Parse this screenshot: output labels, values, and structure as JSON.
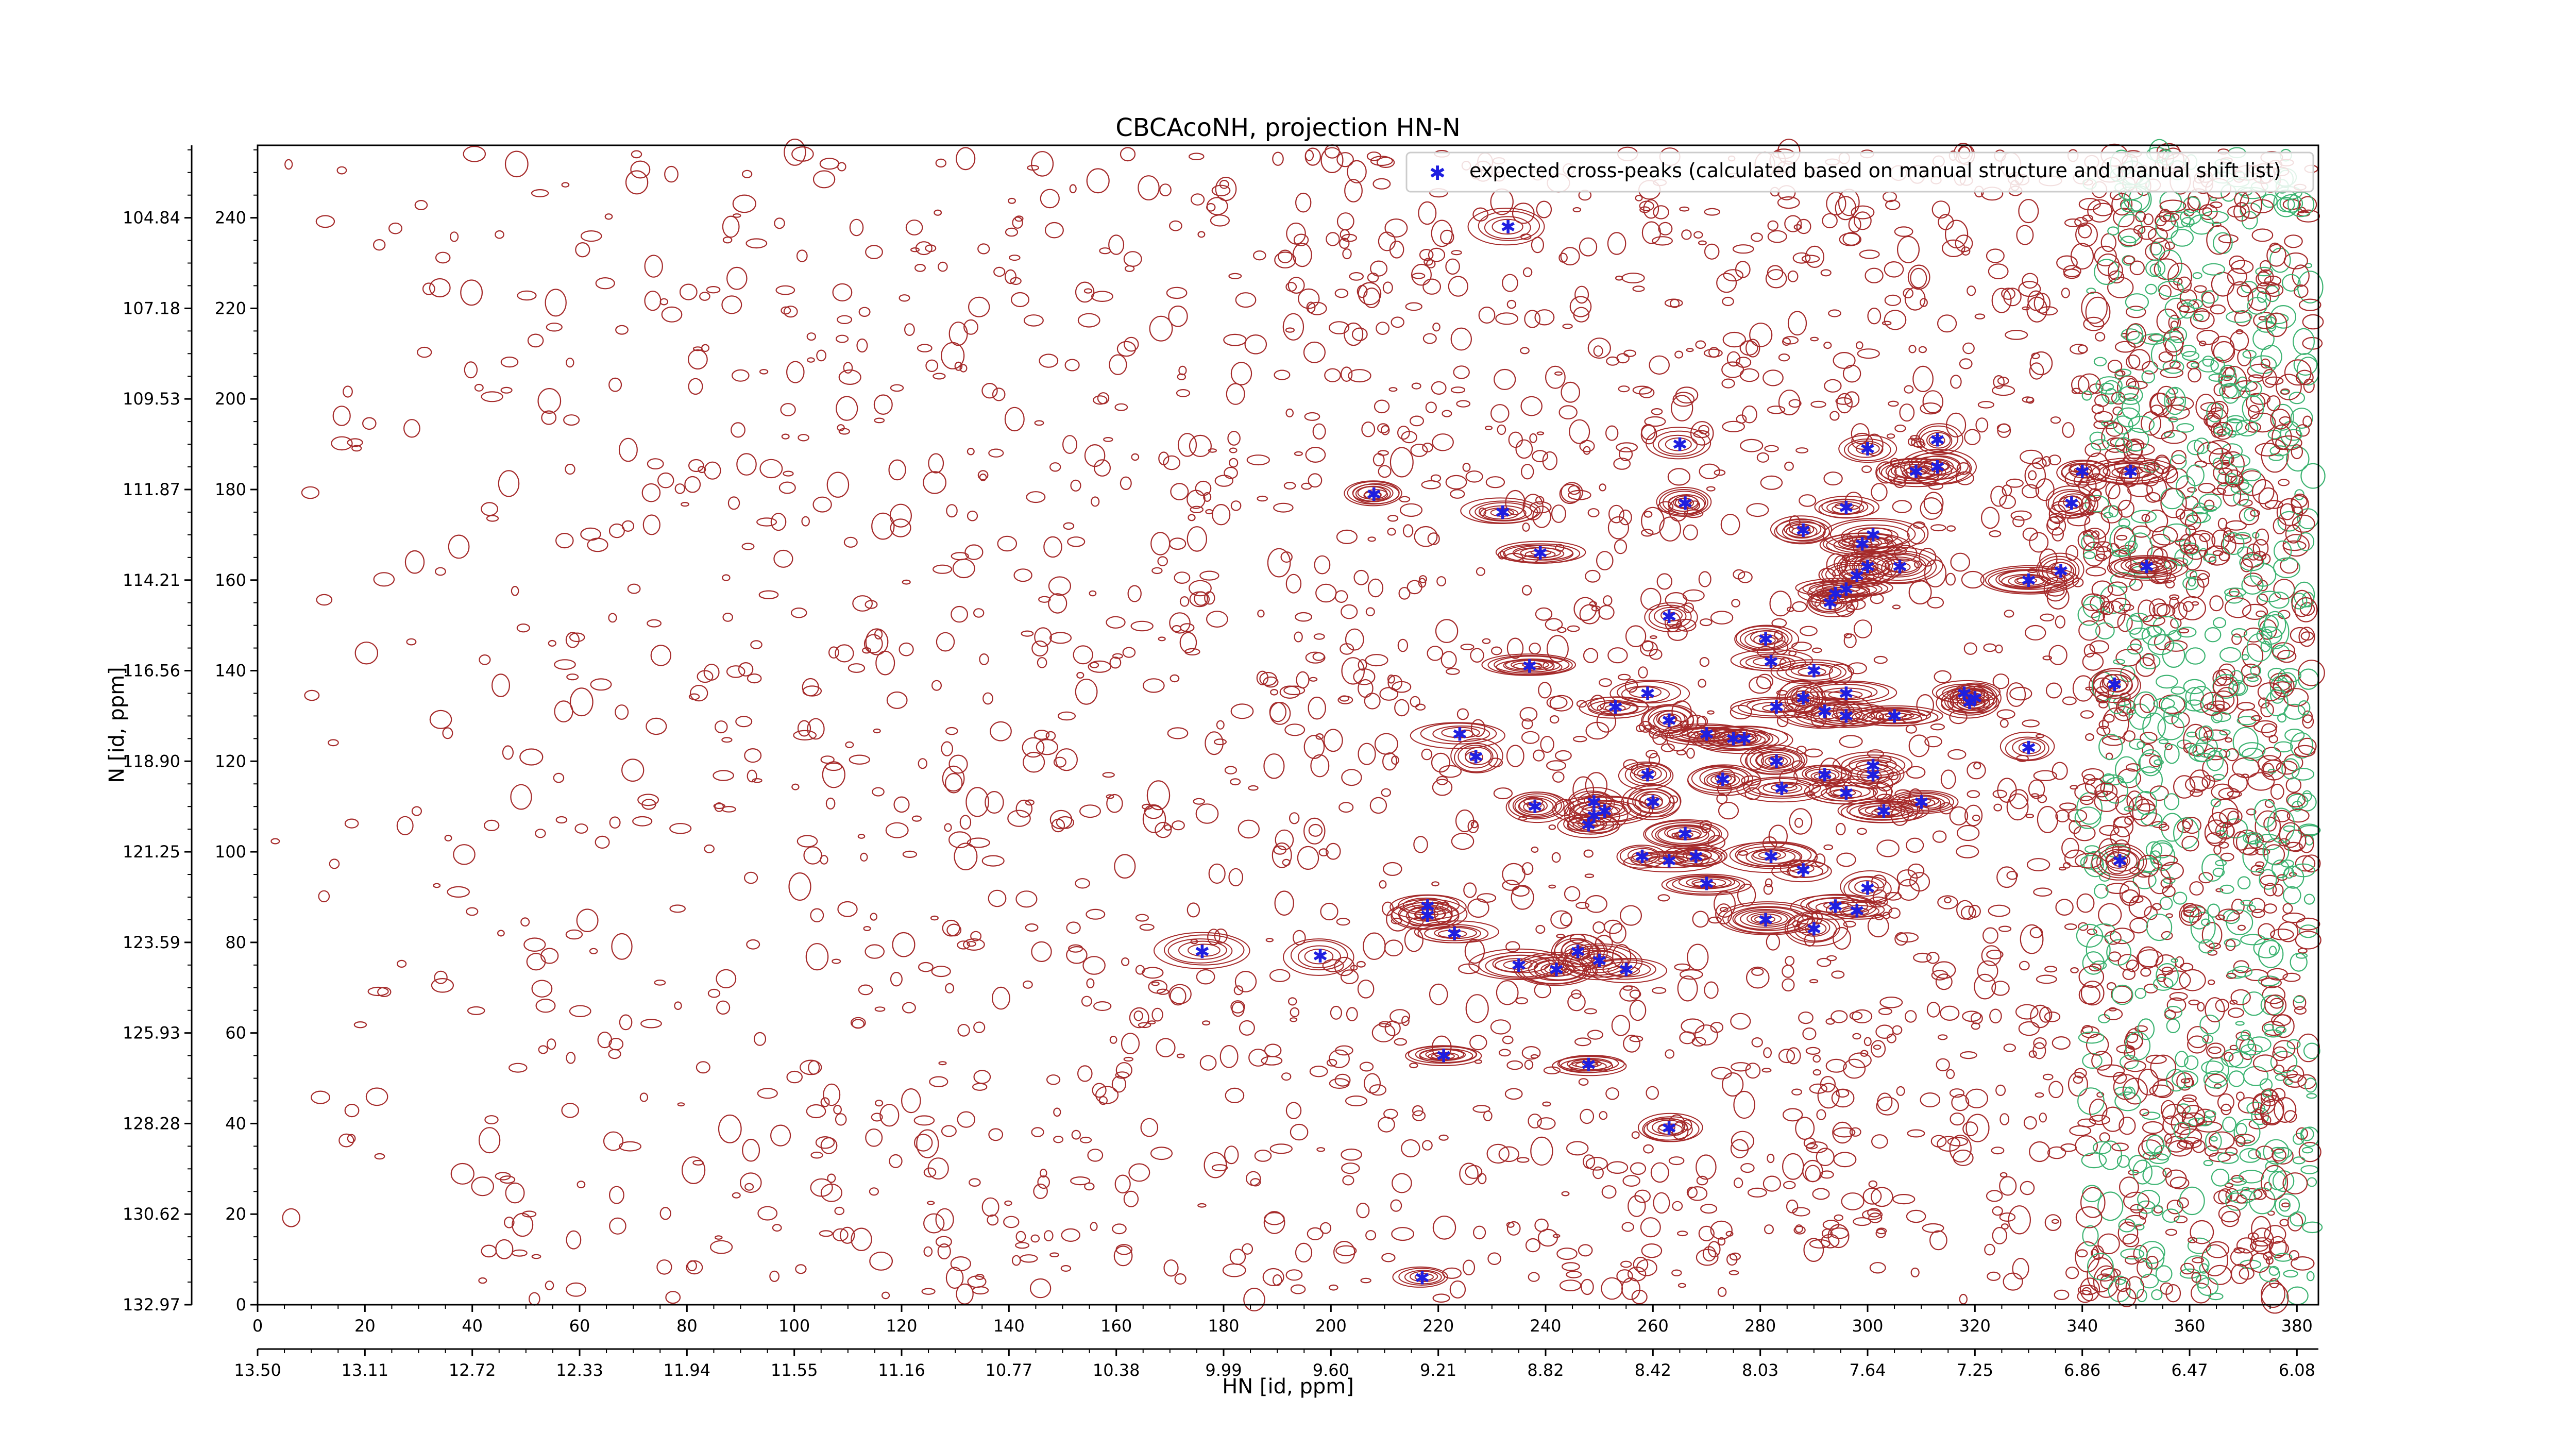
{
  "chart_data": {
    "type": "scatter",
    "title": "CBCAcoNH, projection HN-N",
    "xlabel": "HN [id, ppm]",
    "ylabel": "N [id, ppm]",
    "xlim": [
      0,
      384
    ],
    "ylim": [
      0,
      256
    ],
    "x_ticks": [
      0,
      20,
      40,
      60,
      80,
      100,
      120,
      140,
      160,
      180,
      200,
      220,
      240,
      260,
      280,
      300,
      320,
      340,
      360,
      380
    ],
    "y_ticks": [
      0,
      20,
      40,
      60,
      80,
      100,
      120,
      140,
      160,
      180,
      200,
      220,
      240
    ],
    "ppm_x_ticks": [
      "13.50",
      "13.11",
      "12.72",
      "12.33",
      "11.94",
      "11.55",
      "11.16",
      "10.77",
      "10.38",
      "9.99",
      "9.60",
      "9.21",
      "8.82",
      "8.42",
      "8.03",
      "7.64",
      "7.25",
      "6.86",
      "6.47",
      "6.08"
    ],
    "ppm_y_ticks": [
      "132.97",
      "130.62",
      "128.28",
      "125.93",
      "123.59",
      "121.25",
      "118.90",
      "116.56",
      "114.21",
      "111.87",
      "109.53",
      "107.18",
      "104.84"
    ],
    "grid": false,
    "legend": {
      "placement": "top-right",
      "entries": [
        "expected cross-peaks (calculated based on manual structure and manual shift list)"
      ]
    },
    "colors": {
      "peaks": "#1f1fe0",
      "contour_pos": "#a52a2a",
      "contour_neg": "#3cb371",
      "axis": "#000000"
    },
    "series": [
      {
        "name": "expected cross-peaks (calculated based on manual structure and manual shift list)",
        "points": [
          [
            233,
            238
          ],
          [
            239,
            166
          ],
          [
            232,
            175
          ],
          [
            208,
            179
          ],
          [
            265,
            190
          ],
          [
            266,
            177
          ],
          [
            300,
            189
          ],
          [
            309,
            184
          ],
          [
            313,
            191
          ],
          [
            313,
            185
          ],
          [
            338,
            177
          ],
          [
            340,
            184
          ],
          [
            349,
            184
          ],
          [
            352,
            163
          ],
          [
            336,
            162
          ],
          [
            330,
            160
          ],
          [
            306,
            163
          ],
          [
            300,
            163
          ],
          [
            301,
            170
          ],
          [
            299,
            168
          ],
          [
            296,
            176
          ],
          [
            288,
            171
          ],
          [
            298,
            161
          ],
          [
            296,
            158
          ],
          [
            294,
            157
          ],
          [
            293,
            155
          ],
          [
            263,
            152
          ],
          [
            281,
            147
          ],
          [
            282,
            142
          ],
          [
            290,
            140
          ],
          [
            296,
            135
          ],
          [
            305,
            130
          ],
          [
            318,
            135
          ],
          [
            319,
            133
          ],
          [
            320,
            134
          ],
          [
            330,
            123
          ],
          [
            346,
            137
          ],
          [
            237,
            141
          ],
          [
            253,
            132
          ],
          [
            259,
            135
          ],
          [
            263,
            129
          ],
          [
            275,
            125
          ],
          [
            283,
            132
          ],
          [
            288,
            134
          ],
          [
            296,
            130
          ],
          [
            292,
            131
          ],
          [
            270,
            126
          ],
          [
            277,
            125
          ],
          [
            283,
            120
          ],
          [
            224,
            126
          ],
          [
            227,
            121
          ],
          [
            292,
            117
          ],
          [
            301,
            119
          ],
          [
            296,
            113
          ],
          [
            303,
            109
          ],
          [
            310,
            111
          ],
          [
            259,
            117
          ],
          [
            273,
            116
          ],
          [
            284,
            114
          ],
          [
            301,
            117
          ],
          [
            238,
            110
          ],
          [
            249,
            111
          ],
          [
            249,
            108
          ],
          [
            251,
            109
          ],
          [
            248,
            106
          ],
          [
            260,
            111
          ],
          [
            266,
            104
          ],
          [
            268,
            99
          ],
          [
            258,
            99
          ],
          [
            263,
            98
          ],
          [
            270,
            93
          ],
          [
            282,
            99
          ],
          [
            288,
            96
          ],
          [
            300,
            92
          ],
          [
            294,
            88
          ],
          [
            298,
            87
          ],
          [
            281,
            85
          ],
          [
            290,
            83
          ],
          [
            218,
            88
          ],
          [
            218,
            86
          ],
          [
            223,
            82
          ],
          [
            176,
            78
          ],
          [
            198,
            77
          ],
          [
            235,
            75
          ],
          [
            246,
            78
          ],
          [
            250,
            76
          ],
          [
            255,
            74
          ],
          [
            242,
            74
          ],
          [
            347,
            98
          ],
          [
            221,
            55
          ],
          [
            248,
            53
          ],
          [
            263,
            39
          ],
          [
            217,
            6
          ]
        ]
      }
    ]
  }
}
